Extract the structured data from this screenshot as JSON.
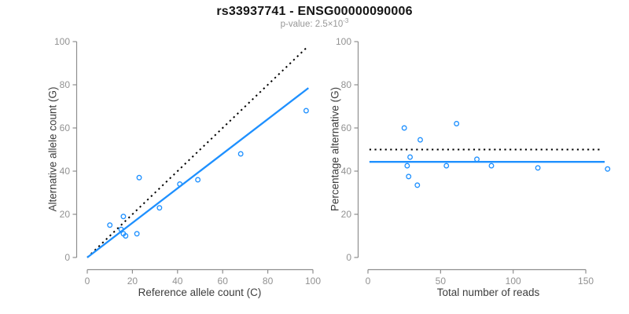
{
  "header": {
    "title": "rs33937741 - ENSG00000090006",
    "subtitle_prefix": "p-value: 2.5×10",
    "subtitle_exponent": "-3"
  },
  "colors": {
    "accent_blue": "#1E90FF",
    "dotted_line": "#000000",
    "axis_line": "#8e8e8e",
    "tick_label": "#929292",
    "axis_title": "#3d3d3d",
    "title": "#151515",
    "subtitle": "#979797",
    "background": "#ffffff"
  },
  "chart_data": [
    {
      "type": "scatter",
      "name": "allele-counts-scatter",
      "xlabel": "Reference allele count (C)",
      "ylabel": "Alternative allele count (G)",
      "xlim": [
        0,
        100
      ],
      "ylim": [
        0,
        100
      ],
      "xticks": [
        0,
        20,
        40,
        60,
        80,
        100
      ],
      "yticks": [
        0,
        20,
        40,
        60,
        80,
        100
      ],
      "grid": false,
      "legend": "none",
      "points": [
        [
          10,
          15
        ],
        [
          15,
          13
        ],
        [
          16,
          11
        ],
        [
          16,
          19
        ],
        [
          17,
          10
        ],
        [
          22,
          11
        ],
        [
          23,
          37
        ],
        [
          32,
          23
        ],
        [
          41,
          34
        ],
        [
          49,
          36
        ],
        [
          68,
          48
        ],
        [
          97,
          68
        ]
      ],
      "lines": [
        {
          "name": "identity-line",
          "style": "dotted",
          "color": "#000000",
          "from": [
            0,
            0
          ],
          "to": [
            97,
            97
          ]
        },
        {
          "name": "regression-line",
          "style": "solid",
          "color": "#1E90FF",
          "from": [
            0,
            0
          ],
          "to": [
            98,
            78.5
          ]
        }
      ]
    },
    {
      "type": "scatter",
      "name": "percentage-vs-coverage-scatter",
      "xlabel": "Total number of reads",
      "ylabel": "Percentage alternative (G)",
      "xlim": [
        0,
        168
      ],
      "ylim": [
        0,
        100
      ],
      "xticks": [
        0,
        50,
        100,
        150
      ],
      "yticks": [
        0,
        20,
        40,
        60,
        80,
        100
      ],
      "x_axis_end": 150,
      "grid": false,
      "legend": "none",
      "points": [
        [
          25,
          60
        ],
        [
          29,
          46.5
        ],
        [
          27,
          42.5
        ],
        [
          36,
          54.5
        ],
        [
          28,
          37.5
        ],
        [
          34,
          33.5
        ],
        [
          61,
          62
        ],
        [
          54,
          42.5
        ],
        [
          75,
          45.5
        ],
        [
          85,
          42.5
        ],
        [
          117,
          41.5
        ],
        [
          165,
          41
        ]
      ],
      "lines": [
        {
          "name": "expected-50pct-line",
          "style": "dotted",
          "color": "#000000",
          "from": [
            1,
            50
          ],
          "to": [
            160,
            50
          ]
        },
        {
          "name": "mean-percentage-line",
          "style": "solid",
          "color": "#1E90FF",
          "from": [
            1,
            44.3
          ],
          "to": [
            163,
            44.3
          ]
        }
      ]
    }
  ]
}
